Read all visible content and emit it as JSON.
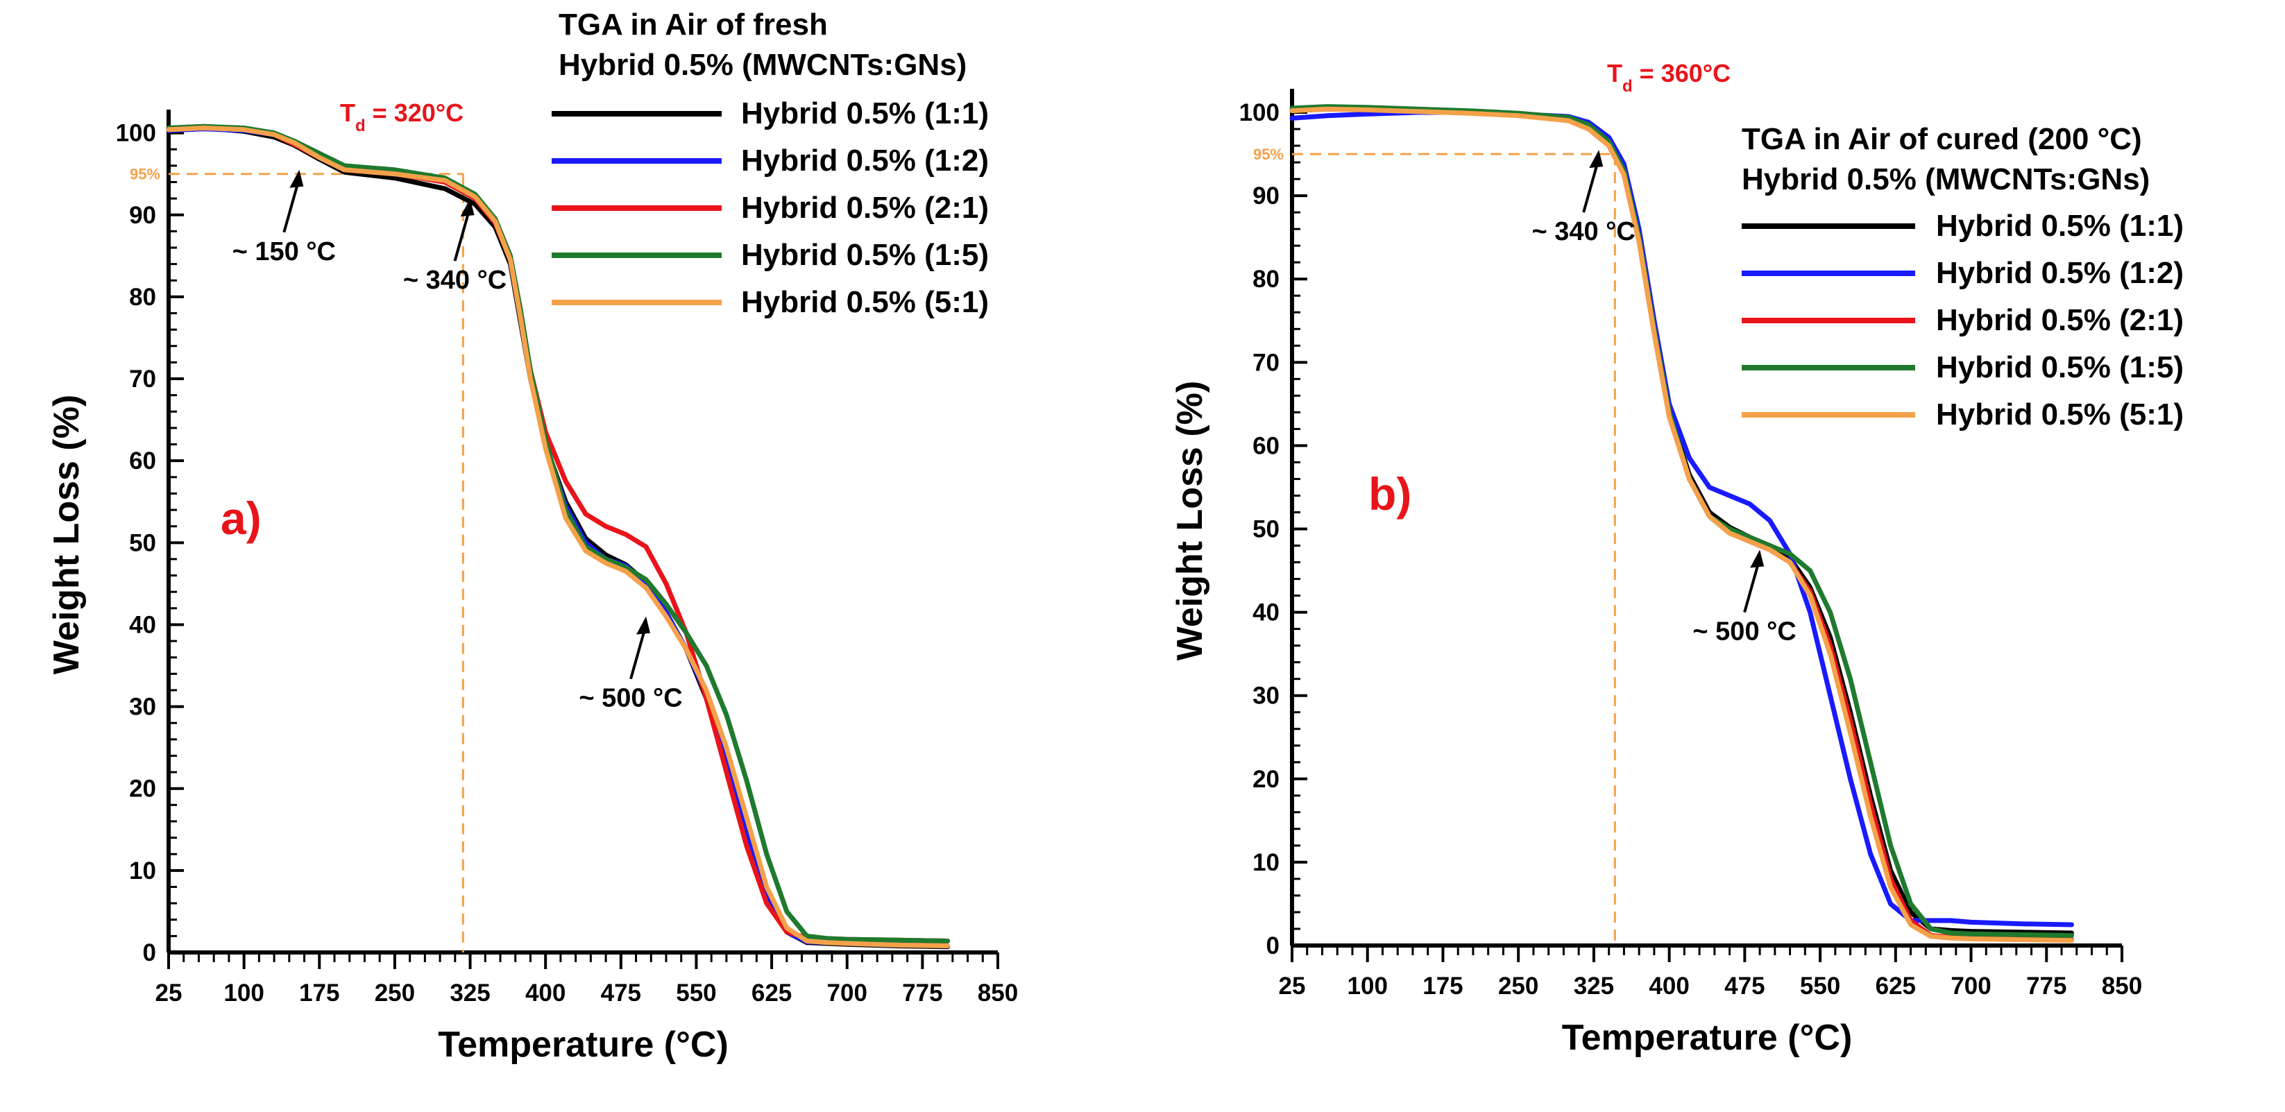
{
  "colors": {
    "s11": "#000000",
    "s12": "#1a1aff",
    "s21": "#e8141a",
    "s15": "#1f7a2e",
    "s51": "#f4a14a",
    "annotation_red": "#e8141a",
    "guide": "#f4a14a"
  },
  "chart_data": [
    {
      "type": "line",
      "panel": "a)",
      "title": "TGA in Air of fresh",
      "subtitle": "Hybrid 0.5% (MWCNTs:GNs)",
      "xlabel": "Temperature (°C)",
      "ylabel": "Weight Loss (%)",
      "xlim": [
        25,
        850
      ],
      "ylim": [
        0,
        102
      ],
      "xticks": [
        25,
        100,
        175,
        250,
        325,
        400,
        475,
        550,
        625,
        700,
        775,
        850
      ],
      "yticks": [
        0,
        10,
        20,
        30,
        40,
        50,
        60,
        70,
        80,
        90,
        100
      ],
      "legend_position": "top-right",
      "td_label": "320°C",
      "td_x": 318,
      "guide_y": 95,
      "guide_label": "95%",
      "annotations": [
        {
          "text": "~ 150 °C",
          "x": 155,
          "y": 95.5
        },
        {
          "text": "~ 340 °C",
          "x": 325,
          "y": 92
        },
        {
          "text": "~ 500 °C",
          "x": 500,
          "y": 41
        }
      ],
      "series": [
        {
          "name": "Hybrid 0.5% (1:1)",
          "color_key": "s11",
          "x": [
            25,
            60,
            100,
            130,
            150,
            175,
            200,
            250,
            300,
            330,
            350,
            365,
            375,
            385,
            400,
            420,
            440,
            460,
            480,
            500,
            520,
            540,
            560,
            580,
            600,
            620,
            640,
            660,
            680,
            700,
            750,
            800
          ],
          "y": [
            100.5,
            100.6,
            100.2,
            99.5,
            98.5,
            96.8,
            95.2,
            94.5,
            93.2,
            91.3,
            88.5,
            84,
            77,
            70,
            62,
            55,
            50.5,
            48.5,
            47.3,
            45.2,
            41.5,
            37,
            31,
            23,
            14,
            7,
            2.5,
            1.2,
            1.1,
            1,
            0.8,
            0.7
          ]
        },
        {
          "name": "Hybrid 0.5% (1:2)",
          "color_key": "s12",
          "x": [
            25,
            60,
            100,
            130,
            150,
            175,
            200,
            250,
            300,
            330,
            350,
            365,
            375,
            385,
            400,
            420,
            440,
            460,
            480,
            500,
            520,
            540,
            560,
            580,
            600,
            620,
            640,
            660,
            680,
            700,
            750,
            800
          ],
          "y": [
            100.3,
            100.5,
            100.3,
            99.8,
            98.8,
            97.2,
            95.6,
            95,
            94,
            92,
            89,
            84.5,
            77.5,
            70,
            62,
            54.5,
            50,
            48,
            47.2,
            45,
            41.5,
            37,
            31.5,
            23.5,
            14.5,
            7,
            2.5,
            1.3,
            1.2,
            1.1,
            0.9,
            0.8
          ]
        },
        {
          "name": "Hybrid 0.5% (2:1)",
          "color_key": "s21",
          "x": [
            25,
            60,
            100,
            130,
            150,
            175,
            200,
            250,
            300,
            330,
            350,
            365,
            375,
            385,
            400,
            420,
            440,
            460,
            480,
            500,
            520,
            540,
            560,
            580,
            600,
            620,
            640,
            660,
            680,
            700,
            750,
            800
          ],
          "y": [
            100.6,
            100.8,
            100.5,
            99.8,
            98.6,
            97,
            95.5,
            95,
            94,
            92,
            89,
            84.5,
            78,
            71,
            63.5,
            57.5,
            53.5,
            52,
            51,
            49.5,
            45,
            39,
            31,
            22,
            13,
            6,
            2.5,
            1.8,
            1.7,
            1.6,
            1.5,
            1.4
          ]
        },
        {
          "name": "Hybrid 0.5% (1:5)",
          "color_key": "s15",
          "x": [
            25,
            60,
            100,
            130,
            150,
            175,
            200,
            250,
            300,
            330,
            350,
            365,
            375,
            385,
            400,
            420,
            440,
            460,
            480,
            500,
            520,
            540,
            560,
            580,
            600,
            620,
            640,
            660,
            680,
            700,
            750,
            800
          ],
          "y": [
            100.6,
            100.8,
            100.6,
            100,
            99,
            97.5,
            96,
            95.5,
            94.5,
            92.5,
            89.5,
            85,
            78.5,
            71,
            62.5,
            54,
            49.5,
            48,
            47,
            45.5,
            42.5,
            39,
            35,
            29,
            21,
            12,
            5,
            2,
            1.7,
            1.6,
            1.5,
            1.4
          ]
        },
        {
          "name": "Hybrid 0.5% (5:1)",
          "color_key": "s51",
          "x": [
            25,
            60,
            100,
            130,
            150,
            175,
            200,
            250,
            300,
            330,
            350,
            365,
            375,
            385,
            400,
            420,
            440,
            460,
            480,
            500,
            520,
            540,
            560,
            580,
            600,
            620,
            640,
            660,
            680,
            700,
            750,
            800
          ],
          "y": [
            100.4,
            100.6,
            100.4,
            99.8,
            98.8,
            97,
            95.5,
            95,
            94.2,
            92.2,
            89.2,
            84.5,
            77.5,
            70,
            61.5,
            53,
            49,
            47.5,
            46.5,
            44.5,
            41,
            37,
            32,
            25,
            16.5,
            8,
            3,
            1.4,
            1.2,
            1.1,
            0.9,
            0.8
          ]
        }
      ]
    },
    {
      "type": "line",
      "panel": "b)",
      "title": "TGA in Air of cured (200 °C)",
      "subtitle": "Hybrid 0.5% (MWCNTs:GNs)",
      "xlabel": "Temperature (°C)",
      "ylabel": "Weight Loss (%)",
      "xlim": [
        25,
        850
      ],
      "ylim": [
        0,
        102
      ],
      "xticks": [
        25,
        100,
        175,
        250,
        325,
        400,
        475,
        550,
        625,
        700,
        775,
        850
      ],
      "yticks": [
        0,
        10,
        20,
        30,
        40,
        50,
        60,
        70,
        80,
        90,
        100
      ],
      "legend_position": "top-right",
      "td_label": "360°C",
      "td_x": 346,
      "guide_y": 95,
      "guide_label": "95%",
      "annotations": [
        {
          "text": "~ 340 °C",
          "x": 330,
          "y": 95.5
        },
        {
          "text": "~ 500 °C",
          "x": 490,
          "y": 47.5
        }
      ],
      "series": [
        {
          "name": "Hybrid 0.5% (1:1)",
          "color_key": "s11",
          "x": [
            25,
            60,
            100,
            150,
            200,
            250,
            300,
            320,
            340,
            355,
            370,
            385,
            400,
            420,
            440,
            460,
            480,
            500,
            520,
            540,
            560,
            580,
            600,
            620,
            640,
            660,
            680,
            700,
            750,
            800
          ],
          "y": [
            100.2,
            100.4,
            100.4,
            100.3,
            100.1,
            99.8,
            99.2,
            98.3,
            96.5,
            93,
            85,
            74,
            64,
            56.5,
            52,
            50.2,
            49,
            48,
            46.5,
            43,
            37,
            28,
            18,
            9,
            4,
            2,
            1.8,
            1.7,
            1.6,
            1.5
          ]
        },
        {
          "name": "Hybrid 0.5% (1:2)",
          "color_key": "s12",
          "x": [
            25,
            60,
            100,
            150,
            200,
            250,
            300,
            320,
            340,
            355,
            370,
            385,
            400,
            420,
            440,
            460,
            480,
            500,
            520,
            540,
            560,
            580,
            600,
            620,
            640,
            660,
            680,
            700,
            750,
            800
          ],
          "y": [
            99.3,
            99.6,
            99.8,
            100,
            100,
            99.8,
            99.5,
            98.8,
            97,
            93.8,
            86,
            75,
            65,
            58.5,
            55,
            54,
            53,
            51,
            47,
            40,
            30,
            20,
            11,
            5,
            3,
            3,
            3,
            2.8,
            2.6,
            2.5
          ]
        },
        {
          "name": "Hybrid 0.5% (2:1)",
          "color_key": "s21",
          "x": [
            25,
            60,
            100,
            150,
            200,
            250,
            300,
            320,
            340,
            355,
            370,
            385,
            400,
            420,
            440,
            460,
            480,
            500,
            520,
            540,
            560,
            580,
            600,
            620,
            640,
            660,
            680,
            700,
            750,
            800
          ],
          "y": [
            100.3,
            100.5,
            100.5,
            100.3,
            100,
            99.7,
            99,
            98,
            96,
            92.5,
            84.5,
            73.5,
            63.5,
            56,
            51.5,
            49.5,
            48.5,
            47.5,
            46,
            42.5,
            36,
            27,
            17,
            8,
            3,
            1.2,
            1,
            0.9,
            0.8,
            0.7
          ]
        },
        {
          "name": "Hybrid 0.5% (1:5)",
          "color_key": "s15",
          "x": [
            25,
            60,
            100,
            150,
            200,
            250,
            300,
            320,
            340,
            355,
            370,
            385,
            400,
            420,
            440,
            460,
            480,
            500,
            520,
            540,
            560,
            580,
            600,
            620,
            640,
            660,
            680,
            700,
            750,
            800
          ],
          "y": [
            100.5,
            100.7,
            100.6,
            100.4,
            100.2,
            99.9,
            99.4,
            98.5,
            96.5,
            93,
            85,
            74,
            64,
            56,
            51.5,
            50,
            49,
            48,
            47,
            45,
            40,
            32,
            22,
            12,
            5,
            2,
            1.5,
            1.4,
            1.3,
            1.2
          ]
        },
        {
          "name": "Hybrid 0.5% (5:1)",
          "color_key": "s51",
          "x": [
            25,
            60,
            100,
            150,
            200,
            250,
            300,
            320,
            340,
            355,
            370,
            385,
            400,
            420,
            440,
            460,
            480,
            500,
            520,
            540,
            560,
            580,
            600,
            620,
            640,
            660,
            680,
            700,
            750,
            800
          ],
          "y": [
            100.2,
            100.4,
            100.3,
            100.1,
            99.9,
            99.6,
            99,
            98,
            96,
            92.5,
            84.5,
            73.5,
            63.5,
            56,
            51.5,
            49.5,
            48.5,
            47.5,
            46,
            42,
            35,
            25.5,
            15.5,
            7,
            2.5,
            1.1,
            0.9,
            0.8,
            0.7,
            0.6
          ]
        }
      ]
    }
  ]
}
